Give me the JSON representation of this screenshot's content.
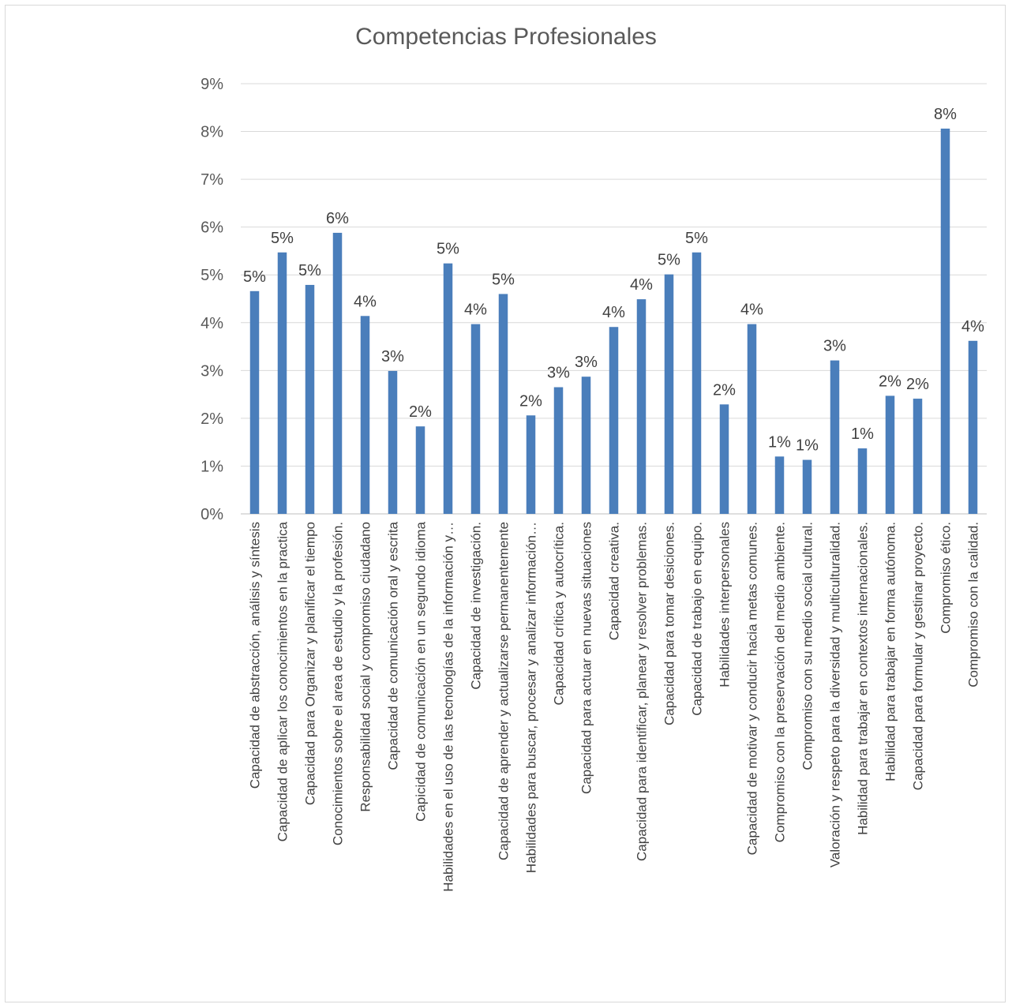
{
  "chart_data": {
    "type": "bar",
    "title": "Competencias Profesionales",
    "xlabel": "",
    "ylabel": "",
    "ylim": [
      0,
      9
    ],
    "y_ticks": [
      "0%",
      "1%",
      "2%",
      "3%",
      "4%",
      "5%",
      "6%",
      "7%",
      "8%",
      "9%"
    ],
    "grid": true,
    "legend": "none",
    "bar_color": "#4a7ebb",
    "categories": [
      "Capacidad de abstracción, análisis y síntesis",
      "Capacidad de aplicar los conocimientos en la practica",
      "Capacidad para Organizar y planificar el tiempo",
      "Conocimientos sobre el area de estudio y la profesión.",
      "Responsabilidad social y compromiso ciudadano",
      "Capacidad de comunicación oral y escrita",
      "Capicidad de comunicación en un segundo idioma",
      "Habilidades en el uso de las tecnologías de la información y…",
      "Capacidad de investigación.",
      "Capacidad de aprender y actualizarse permanentemente",
      "Habilidades para buscar, procesar y analizar información…",
      "Capacidad crítica y autocrítica.",
      "Capacidad para actuar en nuevas situaciones",
      "Capacidad creativa.",
      "Capacidad para identificar, planear y resolver problemas.",
      "Capacidad para tomar desiciones.",
      "Capacidad de trabajo en equipo.",
      "Habilidades interpersonales",
      "Capacidad de motivar y conducir hacia metas comunes.",
      "Compromiso con la preservación del medio ambiente.",
      "Compromiso con su medio social cultural.",
      "Valoración y respeto para la diversidad y multiculturalidad.",
      "Habilidad para trabajar en contextos internacionales.",
      "Habilidad para trabajar en forma autónoma.",
      "Capacidad para formular y gestinar proyecto.",
      "Compromiso ético.",
      "Compromiso con la calidad."
    ],
    "values": [
      4.66,
      5.47,
      4.79,
      5.88,
      4.14,
      2.99,
      1.83,
      5.24,
      3.97,
      4.6,
      2.06,
      2.65,
      2.87,
      3.91,
      4.49,
      5.01,
      5.47,
      2.29,
      3.97,
      1.2,
      1.13,
      3.21,
      1.37,
      2.47,
      2.41,
      8.06,
      3.62
    ],
    "data_labels": [
      "5%",
      "5%",
      "5%",
      "6%",
      "4%",
      "3%",
      "2%",
      "5%",
      "4%",
      "5%",
      "2%",
      "3%",
      "3%",
      "4%",
      "4%",
      "5%",
      "5%",
      "2%",
      "4%",
      "1%",
      "1%",
      "3%",
      "1%",
      "2%",
      "2%",
      "8%",
      "4%"
    ]
  }
}
